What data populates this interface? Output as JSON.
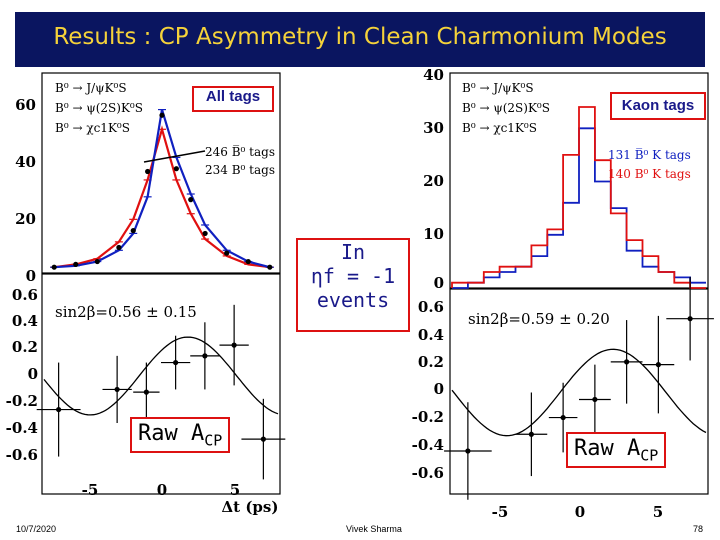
{
  "title": "Results : CP Asymmetry in Clean Charmonium Modes",
  "left_panel": {
    "tag_label": "All tags",
    "legend": [
      "B⁰ → J/ψK⁰S",
      "B⁰ → ψ(2S)K⁰S",
      "B⁰ → χc1K⁰S"
    ],
    "count_labels": [
      "246 B̅⁰ tags",
      "234 B⁰ tags"
    ],
    "top_yticks": [
      "60",
      "40",
      "20",
      "0"
    ],
    "bottom_yticks": [
      "0.6",
      "0.4",
      "0.2",
      "0",
      "-0.2",
      "-0.4",
      "-0.6"
    ],
    "xticks": [
      "-5",
      "0",
      "5"
    ],
    "xlabel": "Δt (ps)",
    "sin2b": "sin2β=0.56 ± 0.15",
    "raw_label": "Raw A",
    "raw_sub": "CP"
  },
  "right_panel": {
    "tag_label": "Kaon tags",
    "legend": [
      "B⁰ → J/ψK⁰S",
      "B⁰ → ψ(2S)K⁰S",
      "B⁰ → χc1K⁰S"
    ],
    "count_labels": [
      "131 B̅⁰ K tags",
      "140 B⁰ K tags"
    ],
    "top_yticks": [
      "40",
      "30",
      "20",
      "10",
      "0"
    ],
    "bottom_yticks": [
      "0.6",
      "0.4",
      "0.2",
      "0",
      "-0.2",
      "-0.4",
      "-0.6"
    ],
    "xticks": [
      "-5",
      "0",
      "5"
    ],
    "sin2b": "sin2β=0.59 ± 0.20",
    "raw_label": "Raw A",
    "raw_sub": "CP"
  },
  "callout": {
    "line1": "In",
    "line2": "ηf = -1",
    "line3": "events"
  },
  "footer": {
    "date": "10/7/2020",
    "author": "Vivek Sharma",
    "page": "78"
  },
  "colors": {
    "title_bg": "#0a1560",
    "title_text": "#f5d23a",
    "red": "#e01010",
    "blue": "#1020c0",
    "box_border": "#d11"
  },
  "chart_data": [
    {
      "type": "line",
      "name": "All tags Δt distribution",
      "xlim": [
        -8,
        8
      ],
      "ylim": [
        0,
        70
      ],
      "series": [
        {
          "name": "246 B̅⁰ tags",
          "color": "#e01010",
          "x": [
            -7.5,
            -6,
            -4.5,
            -3,
            -2,
            -1,
            0,
            1,
            2,
            3,
            4.5,
            6,
            7.5
          ],
          "values": [
            1,
            2,
            4,
            10,
            18,
            32,
            50,
            32,
            20,
            11,
            5,
            2,
            1
          ]
        },
        {
          "name": "234 B⁰ tags",
          "color": "#1020c0",
          "x": [
            -7.5,
            -6,
            -4.5,
            -3,
            -2,
            -1,
            0,
            1,
            2,
            3,
            4.5,
            6,
            7.5
          ],
          "values": [
            1,
            1.5,
            3,
            7,
            13,
            26,
            57,
            40,
            27,
            16,
            7,
            3,
            1
          ]
        }
      ],
      "points": {
        "x": [
          -7.5,
          -6,
          -4.5,
          -3,
          -2,
          -1,
          0,
          1,
          2,
          3,
          4.5,
          6,
          7.5
        ],
        "values": [
          1,
          2,
          3,
          8,
          14,
          35,
          55,
          36,
          25,
          13,
          6,
          3,
          1
        ]
      }
    },
    {
      "type": "scatter",
      "name": "All tags raw ACP",
      "xlim": [
        -8,
        8
      ],
      "ylim": [
        -0.7,
        0.7
      ],
      "x": [
        -7,
        -3,
        -1,
        1,
        3,
        5,
        7
      ],
      "values": [
        -0.25,
        -0.1,
        -0.12,
        0.1,
        0.15,
        0.23,
        -0.47
      ],
      "xerr": [
        1.5,
        1,
        0.9,
        1,
        1,
        1,
        1.5
      ],
      "yerr": [
        0.35,
        0.25,
        0.22,
        0.2,
        0.25,
        0.3,
        0.3
      ]
    },
    {
      "type": "bar",
      "name": "Kaon tags Δt histogram",
      "xlim": [
        -8,
        8
      ],
      "ylim": [
        0,
        40
      ],
      "bin_edges": [
        -8,
        -7,
        -6,
        -5,
        -4,
        -3,
        -2,
        -1,
        0,
        1,
        2,
        3,
        4,
        5,
        6,
        7,
        8
      ],
      "series": [
        {
          "name": "131 B̅⁰ K tags",
          "color": "#1020c0",
          "values": [
            0,
            1,
            2,
            3,
            4,
            6,
            10,
            16,
            30,
            20,
            15,
            7,
            4,
            3,
            2,
            1
          ]
        },
        {
          "name": "140 B⁰ K tags",
          "color": "#e01010",
          "values": [
            1,
            1,
            3,
            4,
            4,
            8,
            11,
            25,
            34,
            24,
            14,
            9,
            6,
            3,
            1,
            0
          ]
        }
      ]
    },
    {
      "type": "scatter",
      "name": "Kaon tags raw ACP",
      "xlim": [
        -8,
        8
      ],
      "ylim": [
        -0.7,
        0.7
      ],
      "x": [
        -7,
        -3,
        -1,
        1,
        3,
        5,
        7
      ],
      "values": [
        -0.42,
        -0.3,
        -0.18,
        -0.05,
        0.22,
        0.2,
        0.53
      ],
      "xerr": [
        1.5,
        1,
        0.9,
        1,
        1,
        1,
        1.5
      ],
      "yerr": [
        0.35,
        0.3,
        0.25,
        0.25,
        0.3,
        0.35,
        0.3
      ]
    }
  ]
}
